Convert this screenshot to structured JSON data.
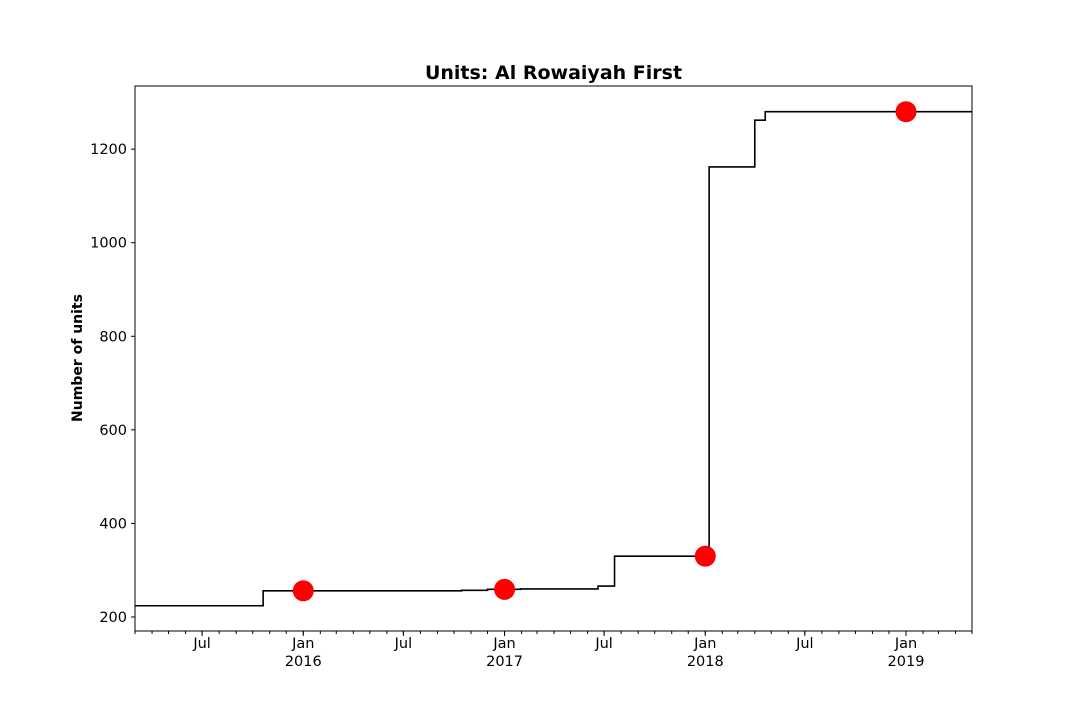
{
  "chart_data": {
    "type": "line",
    "title": "Units: Al Rowaiyah First",
    "xlabel": "",
    "ylabel": "Number of units",
    "xlim": [
      "2015-03-01",
      "2019-05-01"
    ],
    "ylim": [
      170,
      1335
    ],
    "grid": false,
    "legend": "none",
    "x_ticks": [
      {
        "date": "2015-07-01",
        "label": "Jul",
        "sublabel": ""
      },
      {
        "date": "2016-01-01",
        "label": "Jan",
        "sublabel": "2016"
      },
      {
        "date": "2016-07-01",
        "label": "Jul",
        "sublabel": ""
      },
      {
        "date": "2017-01-01",
        "label": "Jan",
        "sublabel": "2017"
      },
      {
        "date": "2017-07-01",
        "label": "Jul",
        "sublabel": ""
      },
      {
        "date": "2018-01-01",
        "label": "Jan",
        "sublabel": "2018"
      },
      {
        "date": "2018-07-01",
        "label": "Jul",
        "sublabel": ""
      },
      {
        "date": "2019-01-01",
        "label": "Jan",
        "sublabel": "2019"
      }
    ],
    "y_ticks": [
      200,
      400,
      600,
      800,
      1000,
      1200
    ],
    "series": [
      {
        "style": "step",
        "color": "#000000",
        "points": [
          {
            "x": "2015-03-01",
            "y": 224
          },
          {
            "x": "2015-10-20",
            "y": 224
          },
          {
            "x": "2015-10-20",
            "y": 256
          },
          {
            "x": "2016-10-15",
            "y": 256
          },
          {
            "x": "2016-10-15",
            "y": 257
          },
          {
            "x": "2016-12-01",
            "y": 257
          },
          {
            "x": "2016-12-01",
            "y": 259
          },
          {
            "x": "2017-01-30",
            "y": 259
          },
          {
            "x": "2017-01-30",
            "y": 260
          },
          {
            "x": "2017-06-20",
            "y": 260
          },
          {
            "x": "2017-06-20",
            "y": 266
          },
          {
            "x": "2017-07-20",
            "y": 266
          },
          {
            "x": "2017-07-20",
            "y": 330
          },
          {
            "x": "2018-01-08",
            "y": 330
          },
          {
            "x": "2018-01-08",
            "y": 1162
          },
          {
            "x": "2018-04-01",
            "y": 1162
          },
          {
            "x": "2018-04-01",
            "y": 1262
          },
          {
            "x": "2018-04-20",
            "y": 1262
          },
          {
            "x": "2018-04-20",
            "y": 1280
          },
          {
            "x": "2019-05-01",
            "y": 1280
          }
        ]
      },
      {
        "style": "markers",
        "color": "#ff0000",
        "points": [
          {
            "x": "2016-01-01",
            "y": 256
          },
          {
            "x": "2017-01-01",
            "y": 259
          },
          {
            "x": "2018-01-01",
            "y": 330
          },
          {
            "x": "2019-01-01",
            "y": 1280
          }
        ]
      }
    ]
  }
}
